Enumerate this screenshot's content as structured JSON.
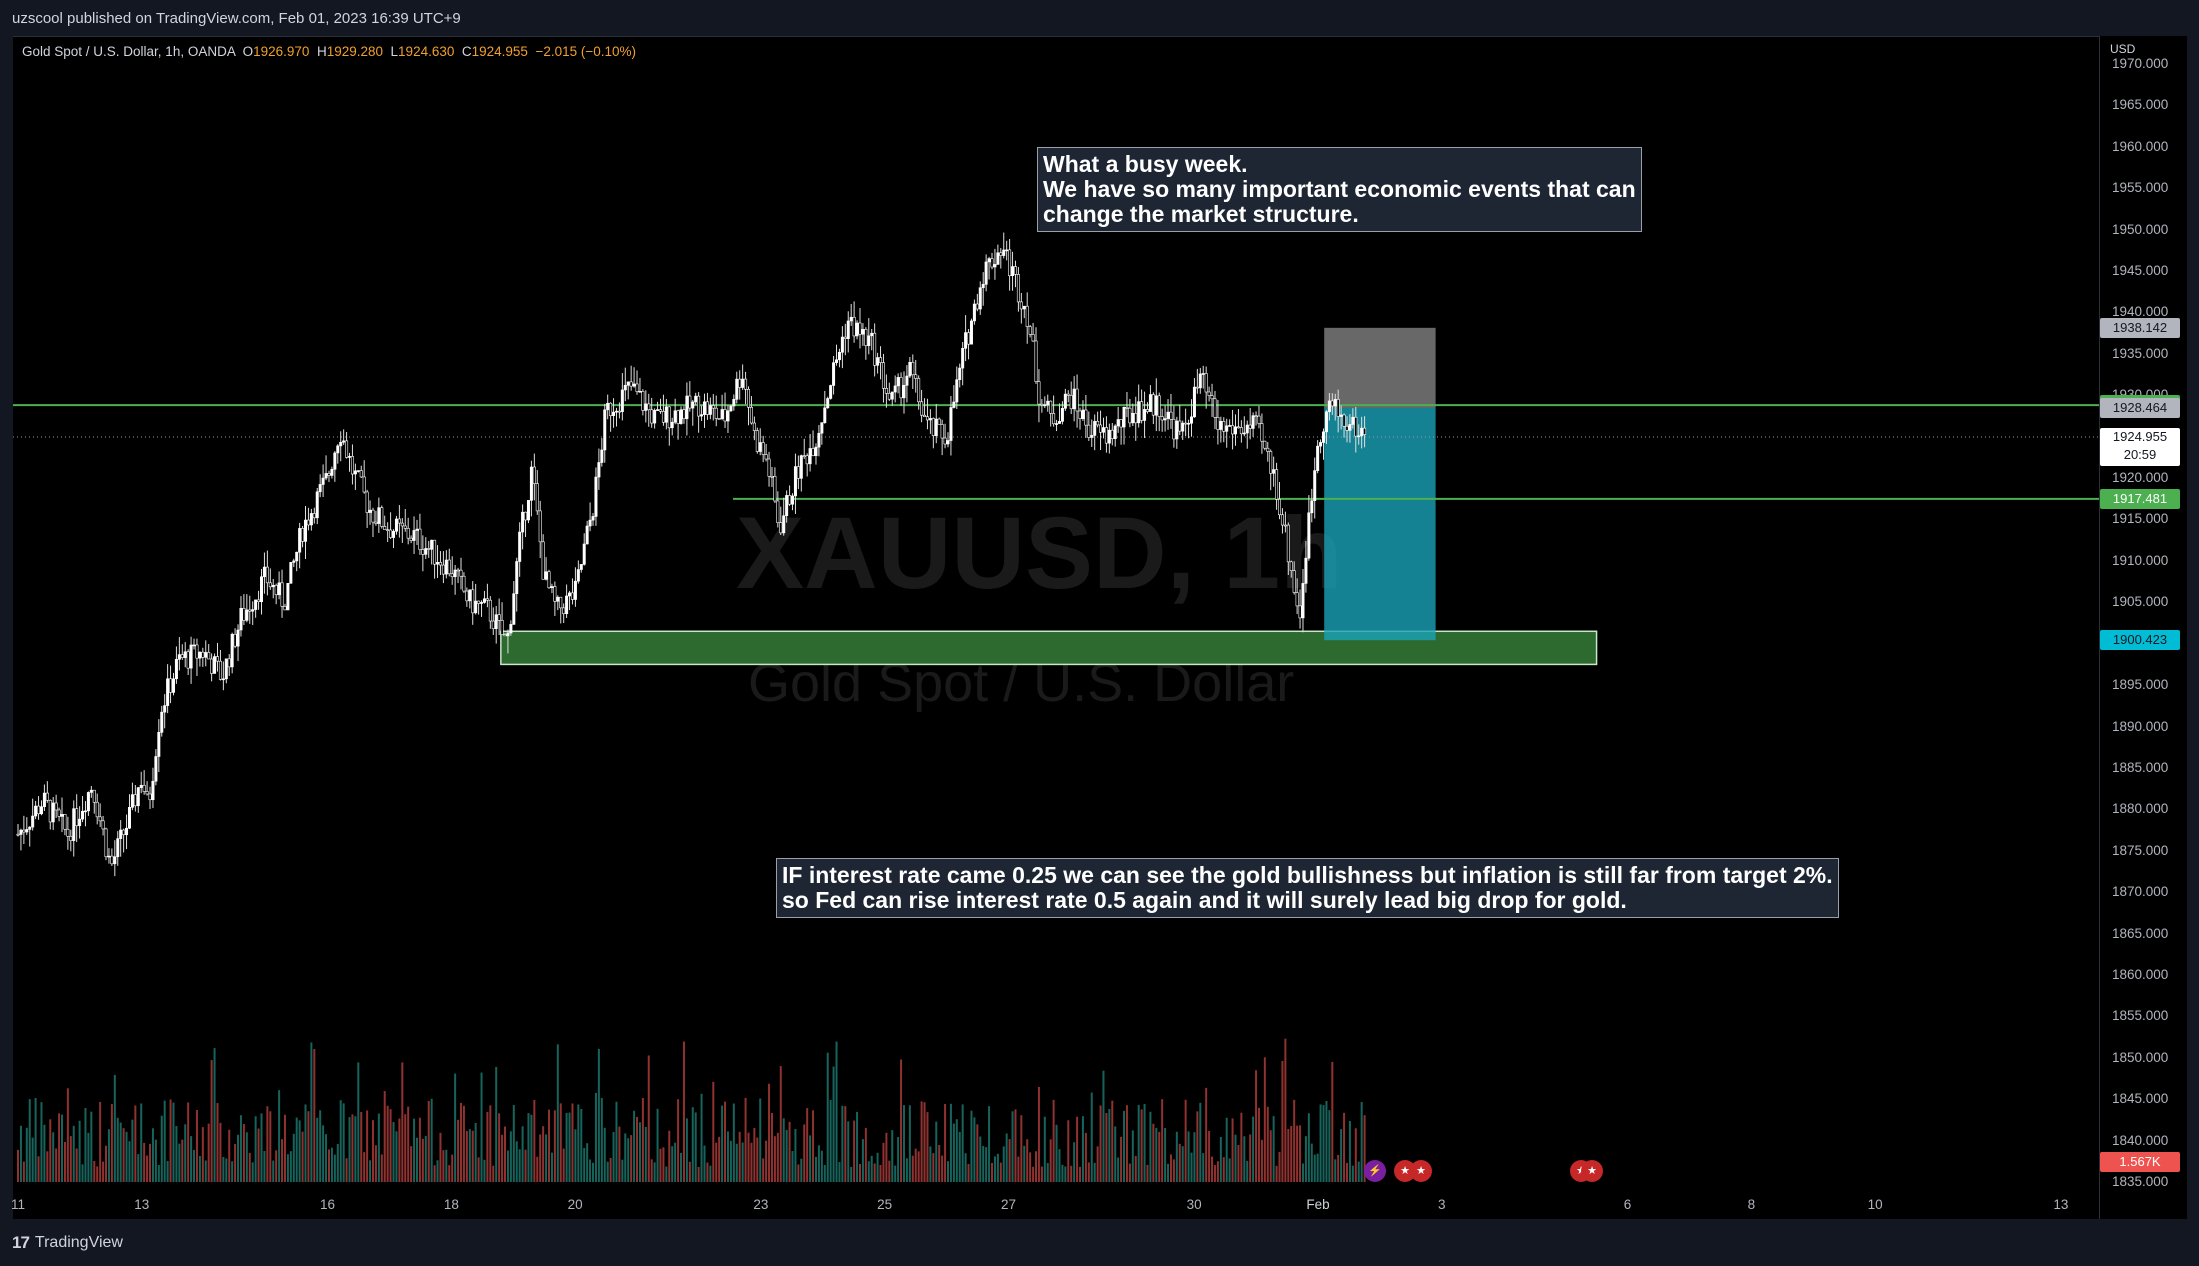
{
  "header": {
    "published": "uzscool published on TradingView.com, Feb 01, 2023 16:39 UTC+9"
  },
  "legend": {
    "symbol": "Gold Spot / U.S. Dollar, 1h, OANDA",
    "open_label": "O",
    "open": "1926.970",
    "high_label": "H",
    "high": "1929.280",
    "low_label": "L",
    "low": "1924.630",
    "close_label": "C",
    "close": "1924.955",
    "change": "−2.015 (−0.10%)"
  },
  "watermark": {
    "ticker": "XAUUSD, 1h",
    "name": "Gold Spot / U.S. Dollar"
  },
  "annotations": {
    "top_note": [
      "What a busy week.",
      "We have so many important economic events that can",
      "change the market structure."
    ],
    "bottom_note": [
      "IF interest rate came 0.25 we can see the gold bullishness but inflation is still far from target 2%.",
      "so Fed can rise interest rate 0.5 again and it will surely lead big drop for gold."
    ]
  },
  "price_axis": {
    "unit": "USD",
    "ticks": [
      "1970.000",
      "1965.000",
      "1960.000",
      "1955.000",
      "1950.000",
      "1945.000",
      "1940.000",
      "1935.000",
      "1930.000",
      "1925.000",
      "1920.000",
      "1915.000",
      "1910.000",
      "1905.000",
      "1900.000",
      "1895.000",
      "1890.000",
      "1885.000",
      "1880.000",
      "1875.000",
      "1870.000",
      "1865.000",
      "1860.000",
      "1855.000",
      "1850.000",
      "1845.000",
      "1840.000",
      "1835.000"
    ],
    "labels": [
      {
        "text": "1938.142",
        "value": 1938.142,
        "bg": "#b2b5be",
        "fg": "#131722"
      },
      {
        "text": "1928.804",
        "value": 1928.804,
        "bg": "#4caf50",
        "fg": "#ffffff"
      },
      {
        "text": "1928.464",
        "value": 1928.464,
        "bg": "#b2b5be",
        "fg": "#131722"
      },
      {
        "text": "1917.481",
        "value": 1917.481,
        "bg": "#4caf50",
        "fg": "#ffffff"
      },
      {
        "text": "1900.423",
        "value": 1900.423,
        "bg": "#00bcd4",
        "fg": "#131722"
      }
    ],
    "last_price": "1924.955",
    "countdown": "20:59",
    "volume_label": "1.567K"
  },
  "time_axis": {
    "ticks": [
      {
        "label": "11",
        "day": 11
      },
      {
        "label": "13",
        "day": 13
      },
      {
        "label": "16",
        "day": 16
      },
      {
        "label": "18",
        "day": 18
      },
      {
        "label": "20",
        "day": 20
      },
      {
        "label": "23",
        "day": 23
      },
      {
        "label": "25",
        "day": 25
      },
      {
        "label": "27",
        "day": 27
      },
      {
        "label": "30",
        "day": 30
      },
      {
        "label": "Feb",
        "day": 32
      },
      {
        "label": "3",
        "day": 34
      },
      {
        "label": "6",
        "day": 37
      },
      {
        "label": "8",
        "day": 39
      },
      {
        "label": "10",
        "day": 41
      },
      {
        "label": "13",
        "day": 44
      }
    ]
  },
  "chart_data": {
    "type": "candlestick",
    "symbol": "XAUUSD",
    "interval": "1h",
    "ylim": [
      1835,
      1970
    ],
    "x_unit": "day (Jan = 1..31, Feb 1 = 32)",
    "close_path": [
      [
        11.0,
        1877
      ],
      [
        11.4,
        1881
      ],
      [
        11.8,
        1877
      ],
      [
        12.2,
        1883
      ],
      [
        12.5,
        1873
      ],
      [
        12.8,
        1879
      ],
      [
        13.0,
        1884
      ],
      [
        13.1,
        1880
      ],
      [
        13.3,
        1892
      ],
      [
        13.6,
        1898
      ],
      [
        14.0,
        1899
      ],
      [
        14.3,
        1896
      ],
      [
        14.6,
        1903
      ],
      [
        15.0,
        1908
      ],
      [
        15.3,
        1905
      ],
      [
        15.6,
        1914
      ],
      [
        16.0,
        1920
      ],
      [
        16.2,
        1926
      ],
      [
        16.4,
        1921
      ],
      [
        16.7,
        1916
      ],
      [
        17.0,
        1914
      ],
      [
        17.4,
        1913
      ],
      [
        17.7,
        1911
      ],
      [
        18.0,
        1909
      ],
      [
        18.3,
        1905
      ],
      [
        18.6,
        1904
      ],
      [
        18.9,
        1900
      ],
      [
        19.1,
        1912
      ],
      [
        19.3,
        1921
      ],
      [
        19.5,
        1908
      ],
      [
        19.7,
        1904
      ],
      [
        20.0,
        1906
      ],
      [
        20.3,
        1917
      ],
      [
        20.5,
        1928
      ],
      [
        20.9,
        1931
      ],
      [
        21.3,
        1927
      ],
      [
        21.7,
        1928
      ],
      [
        22.0,
        1929
      ],
      [
        22.4,
        1927
      ],
      [
        22.7,
        1933
      ],
      [
        22.9,
        1925
      ],
      [
        23.1,
        1922
      ],
      [
        23.3,
        1914
      ],
      [
        23.6,
        1921
      ],
      [
        23.9,
        1925
      ],
      [
        24.1,
        1931
      ],
      [
        24.4,
        1939
      ],
      [
        24.8,
        1936
      ],
      [
        25.1,
        1929
      ],
      [
        25.4,
        1933
      ],
      [
        25.7,
        1926
      ],
      [
        26.0,
        1925
      ],
      [
        26.3,
        1936
      ],
      [
        26.6,
        1945
      ],
      [
        26.9,
        1948
      ],
      [
        27.1,
        1944
      ],
      [
        27.3,
        1940
      ],
      [
        27.5,
        1930
      ],
      [
        27.7,
        1927
      ],
      [
        28.0,
        1930
      ],
      [
        28.3,
        1926
      ],
      [
        28.6,
        1925
      ],
      [
        29.0,
        1928
      ],
      [
        29.4,
        1929
      ],
      [
        29.8,
        1925
      ],
      [
        30.1,
        1932
      ],
      [
        30.4,
        1926
      ],
      [
        30.7,
        1926
      ],
      [
        31.0,
        1926
      ],
      [
        31.3,
        1920
      ],
      [
        31.5,
        1912
      ],
      [
        31.7,
        1903
      ],
      [
        31.8,
        1911
      ],
      [
        32.0,
        1925
      ],
      [
        32.2,
        1929
      ],
      [
        32.4,
        1927
      ],
      [
        32.6,
        1926
      ],
      [
        32.8,
        1925
      ]
    ],
    "horizontal_lines": [
      {
        "price": 1928.804,
        "color": "#4caf50"
      },
      {
        "price": 1917.481,
        "color": "#4caf50"
      }
    ],
    "support_zone": {
      "low": 1897.5,
      "high": 1901.5,
      "x_start": 18.8,
      "x_end": 36.5,
      "color": "#2e7d32"
    },
    "position": {
      "type": "short",
      "entry": 1928.464,
      "stop": 1938.142,
      "target": 1900.423,
      "x_start": 32.1,
      "x_end": 33.9
    },
    "volume": {
      "max_k": 1.567
    }
  }
}
